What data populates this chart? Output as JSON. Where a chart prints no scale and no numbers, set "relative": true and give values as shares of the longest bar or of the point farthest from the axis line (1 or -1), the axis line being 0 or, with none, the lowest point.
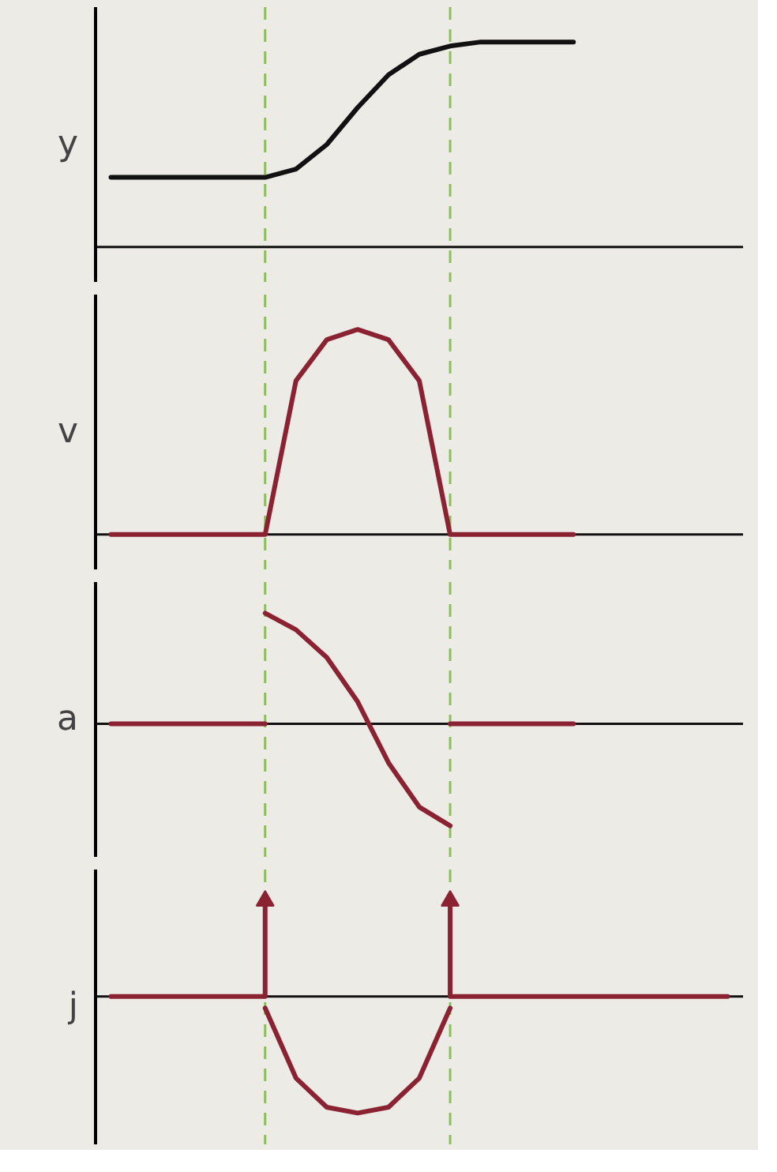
{
  "chart_data": [
    {
      "type": "line",
      "ylabel": "y",
      "relative": true,
      "categories": [
        null,
        null,
        null,
        null,
        null,
        null,
        null,
        null,
        null,
        null,
        null,
        null,
        null,
        null,
        null,
        null,
        null,
        null,
        null,
        null,
        null
      ],
      "series": [
        {
          "color": "#111111",
          "values": [
            0.34,
            0.34,
            0.34,
            0.34,
            0.34,
            0.34,
            0.38,
            0.5,
            0.68,
            0.84,
            0.94,
            0.98,
            1,
            1,
            1,
            1,
            null,
            null,
            null,
            null,
            null
          ]
        }
      ]
    },
    {
      "type": "line",
      "ylabel": "v",
      "relative": true,
      "categories": [
        null,
        null,
        null,
        null,
        null,
        null,
        null,
        null,
        null,
        null,
        null,
        null,
        null,
        null,
        null,
        null,
        null,
        null,
        null,
        null,
        null
      ],
      "series": [
        {
          "color": "#8b2232",
          "values": [
            0,
            0,
            0,
            0,
            0,
            0,
            0.75,
            0.95,
            1,
            0.95,
            0.75,
            0,
            0,
            0,
            0,
            0,
            null,
            null,
            null,
            null,
            null
          ]
        }
      ]
    },
    {
      "type": "line",
      "ylabel": "a",
      "relative": true,
      "categories": [
        null,
        null,
        null,
        null,
        null,
        null,
        null,
        null,
        null,
        null,
        null,
        null,
        null,
        null,
        null,
        null,
        null,
        null,
        null,
        null,
        null
      ],
      "series": [
        {
          "color": "#8b2232",
          "values": [
            0,
            0,
            0,
            0,
            0,
            0,
            null,
            null,
            null,
            null,
            null,
            0,
            0,
            0,
            0,
            0,
            null,
            null,
            null,
            null,
            null
          ]
        },
        {
          "color": "#8b2232",
          "values": [
            null,
            null,
            null,
            null,
            null,
            1,
            0.85,
            0.6,
            0.2,
            -0.35,
            -0.75,
            -0.92,
            null,
            null,
            null,
            null,
            null,
            null,
            null,
            null,
            null
          ]
        }
      ]
    },
    {
      "type": "line",
      "ylabel": "j",
      "relative": true,
      "categories": [
        null,
        null,
        null,
        null,
        null,
        null,
        null,
        null,
        null,
        null,
        null,
        null,
        null,
        null,
        null,
        null,
        null,
        null,
        null,
        null,
        null
      ],
      "series": [
        {
          "color": "#8b2232",
          "values": [
            0,
            0,
            0,
            0,
            0,
            0,
            null,
            null,
            null,
            null,
            null,
            0,
            0,
            0,
            0,
            0,
            0,
            0,
            0,
            0,
            0
          ]
        },
        {
          "color": "#8b2232",
          "values": [
            null,
            null,
            null,
            null,
            null,
            -0.1,
            -0.7,
            -0.95,
            -1,
            -0.95,
            -0.7,
            -0.1,
            null,
            null,
            null,
            null,
            null,
            null,
            null,
            null,
            null
          ]
        },
        {
          "type": "lollipop",
          "marker": "triangle",
          "color": "#8b2232",
          "values": [
            null,
            null,
            null,
            null,
            null,
            0.82,
            null,
            null,
            null,
            null,
            null,
            0.82,
            null,
            null,
            null,
            null,
            null,
            null,
            null,
            null,
            null
          ]
        }
      ]
    }
  ]
}
